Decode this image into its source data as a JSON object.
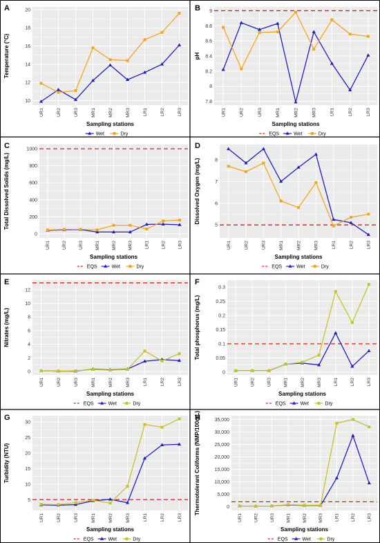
{
  "chart_data": [
    {
      "type": "line",
      "panel_label": "A",
      "categories": [
        "UR1",
        "UR2",
        "UR3",
        "MR1",
        "MR2",
        "MR3",
        "LR1",
        "LR2",
        "LR3"
      ],
      "series": [
        {
          "name": "Wet",
          "values": [
            9.9,
            11.2,
            10.1,
            12.2,
            13.9,
            12.3,
            13.1,
            14.0,
            16.1
          ]
        },
        {
          "name": "Dry",
          "values": [
            11.9,
            10.9,
            11.1,
            15.8,
            14.5,
            14.4,
            16.7,
            17.5,
            19.6
          ]
        }
      ],
      "xlabel": "Sampling stations",
      "ylabel": "Temperature (°C)",
      "ylim": [
        9.5,
        20.3
      ],
      "yticks": [
        10,
        12,
        14,
        16,
        18,
        20
      ],
      "ytick_labels": [
        "10",
        "12",
        "14",
        "16",
        "18",
        "20"
      ],
      "legend_labels": [
        "Wet",
        "Dry"
      ],
      "legend_position": "bottom"
    },
    {
      "type": "line",
      "panel_label": "B",
      "categories": [
        "UR1",
        "UR2",
        "UR3",
        "MR1",
        "MR2",
        "MR3",
        "LR1",
        "LR2",
        "LR3"
      ],
      "series": [
        {
          "name": "Wet",
          "values": [
            8.22,
            8.84,
            8.75,
            8.83,
            7.79,
            8.72,
            8.3,
            7.95,
            8.41
          ]
        },
        {
          "name": "Dry",
          "values": [
            8.78,
            8.23,
            8.71,
            8.72,
            8.98,
            8.49,
            8.88,
            8.69,
            8.66
          ]
        }
      ],
      "eqs": 9.0,
      "xlabel": "Sampling stations",
      "ylabel": "pH",
      "ylim": [
        7.75,
        9.05
      ],
      "yticks": [
        7.8,
        8.0,
        8.2,
        8.4,
        8.6,
        8.8,
        9.0
      ],
      "ytick_labels": [
        "7.8",
        "8",
        "8.2",
        "8.4",
        "8.6",
        "8.8",
        "9"
      ],
      "legend_labels": [
        "EQS",
        "Wet",
        "Dry"
      ],
      "legend_position": "bottom"
    },
    {
      "type": "line",
      "panel_label": "C",
      "categories": [
        "UR1",
        "UR2",
        "UR3",
        "MR1",
        "MR2",
        "MR3",
        "LR1",
        "LR2",
        "LR3"
      ],
      "series": [
        {
          "name": "Wet",
          "values": [
            40,
            45,
            48,
            20,
            20,
            20,
            110,
            112,
            105
          ]
        },
        {
          "name": "Dry",
          "values": [
            45,
            50,
            52,
            45,
            100,
            100,
            55,
            150,
            160
          ]
        }
      ],
      "eqs": 1000,
      "xlabel": "Sampling stations",
      "ylabel": "Total Dissolved Solids (mg/L)",
      "ylim": [
        -50,
        1050
      ],
      "yticks": [
        0,
        200,
        400,
        600,
        800,
        1000
      ],
      "ytick_labels": [
        "0",
        "200",
        "400",
        "600",
        "800",
        "1000"
      ],
      "legend_labels": [
        "EQS",
        "Wet",
        "Dry"
      ],
      "legend_position": "bottom"
    },
    {
      "type": "line",
      "panel_label": "D",
      "categories": [
        "UR1",
        "UR2",
        "UR3",
        "MR1",
        "MR2",
        "MR3",
        "LR1",
        "LR2",
        "LR3"
      ],
      "series": [
        {
          "name": "Wet",
          "values": [
            8.5,
            7.85,
            8.5,
            7.0,
            7.65,
            8.25,
            5.25,
            5.1,
            4.55
          ]
        },
        {
          "name": "Dry",
          "values": [
            7.7,
            7.45,
            7.85,
            6.1,
            5.8,
            6.95,
            4.95,
            5.35,
            5.5
          ]
        }
      ],
      "eqs": 5.0,
      "xlabel": "Sampling stations",
      "ylabel": "Dissolved Oxygen (mg/L)",
      "ylim": [
        4.4,
        8.7
      ],
      "yticks": [
        5,
        6,
        7,
        8
      ],
      "ytick_labels": [
        "5",
        "6",
        "7",
        "8"
      ],
      "legend_labels": [
        "EQS",
        "Wet",
        "Dry"
      ],
      "legend_position": "bottom"
    },
    {
      "type": "line",
      "panel_label": "E",
      "categories": [
        "UR1",
        "UR2",
        "UR3",
        "MR1",
        "MR2",
        "MR3",
        "LR1",
        "LR2",
        "LR3"
      ],
      "series": [
        {
          "name": "Wet",
          "values": [
            0.1,
            0.05,
            0.05,
            0.35,
            0.25,
            0.35,
            1.5,
            1.75,
            1.6
          ]
        },
        {
          "name": "Dry",
          "values": [
            0.1,
            0.05,
            0.1,
            0.3,
            0.2,
            0.3,
            3.0,
            1.55,
            2.6
          ]
        }
      ],
      "eqs": 13.0,
      "xlabel": "Sampling stations",
      "ylabel": "Nitrates (mg/L)",
      "ylim": [
        -0.5,
        13.4
      ],
      "yticks": [
        0,
        2,
        4,
        6,
        8,
        10,
        12
      ],
      "ytick_labels": [
        "0",
        "2",
        "4",
        "6",
        "8",
        "10",
        "12"
      ],
      "legend_labels": [
        "EQS",
        "Wet",
        "Dry"
      ],
      "legend_position": "bottom"
    },
    {
      "type": "line",
      "panel_label": "F",
      "categories": [
        "UR1",
        "UR2",
        "UR3",
        "MR1",
        "MR2",
        "MR3",
        "LR1",
        "LR2",
        "LR3"
      ],
      "series": [
        {
          "name": "Wet",
          "values": [
            0.005,
            0.005,
            0.005,
            0.028,
            0.032,
            0.025,
            0.138,
            0.02,
            0.075
          ]
        },
        {
          "name": "Dry",
          "values": [
            0.005,
            0.005,
            0.005,
            0.028,
            0.035,
            0.06,
            0.285,
            0.175,
            0.31
          ]
        }
      ],
      "eqs": 0.1,
      "xlabel": "Sampling stations",
      "ylabel": "Total phosphorus (mg/L)",
      "ylim": [
        -0.01,
        0.325
      ],
      "yticks": [
        0,
        0.05,
        0.1,
        0.15,
        0.2,
        0.25,
        0.3
      ],
      "ytick_labels": [
        "0",
        "0.05",
        "0.1",
        "0.15",
        "0.2",
        "0.25",
        "0.3"
      ],
      "legend_labels": [
        "EQS",
        "Wet",
        "Dry"
      ],
      "legend_position": "bottom"
    },
    {
      "type": "line",
      "panel_label": "G",
      "categories": [
        "UR1",
        "UR2",
        "UR3",
        "MR1",
        "MR2",
        "MR3",
        "LR1",
        "LR2",
        "LR3"
      ],
      "series": [
        {
          "name": "Wet",
          "values": [
            3.3,
            3.2,
            3.4,
            4.6,
            5.1,
            4.0,
            18.3,
            22.6,
            22.8
          ]
        },
        {
          "name": "Dry",
          "values": [
            3.5,
            3.4,
            4.0,
            4.8,
            3.9,
            9.3,
            29.2,
            28.3,
            31.0
          ]
        }
      ],
      "eqs": 5.0,
      "xlabel": "Sampling stations",
      "ylabel": "Turbidity (NTU)",
      "ylim": [
        1.5,
        32.0
      ],
      "yticks": [
        5,
        10,
        15,
        20,
        25,
        30
      ],
      "ytick_labels": [
        "5",
        "10",
        "15",
        "20",
        "25",
        "30"
      ],
      "legend_labels": [
        "EQS",
        "Wet",
        "Dry"
      ],
      "legend_position": "bottom"
    },
    {
      "type": "line",
      "panel_label": "H",
      "categories": [
        "UR1",
        "UR2",
        "UR3",
        "MR1",
        "MR2",
        "MR3",
        "LR1",
        "LR2",
        "LR3"
      ],
      "series": [
        {
          "name": "Wet",
          "values": [
            300,
            200,
            300,
            700,
            500,
            500,
            11500,
            28500,
            9500
          ]
        },
        {
          "name": "Dry",
          "values": [
            300,
            200,
            300,
            800,
            600,
            600,
            33500,
            35000,
            32000
          ]
        }
      ],
      "eqs": 2000,
      "xlabel": "Sampling stations",
      "ylabel": "Thermotolerant Coliforms (NMP/100mL)",
      "ylim": [
        -1500,
        36500
      ],
      "yticks": [
        0,
        5000,
        10000,
        15000,
        20000,
        25000,
        30000,
        35000
      ],
      "ytick_labels": [
        "0",
        "5,000",
        "10,000",
        "15,000",
        "20,000",
        "25,000",
        "30,000",
        "35,000"
      ],
      "legend_labels": [
        "EQS",
        "Wet",
        "Dry"
      ],
      "legend_position": "bottom"
    }
  ],
  "colors": {
    "wet": "#1c1cc8",
    "dry_orange": "#f4a51c",
    "dry_olive": "#c6c22a",
    "eqs": "#e8191b",
    "panel_bg": "#ebebeb",
    "grid": "#ffffff"
  }
}
